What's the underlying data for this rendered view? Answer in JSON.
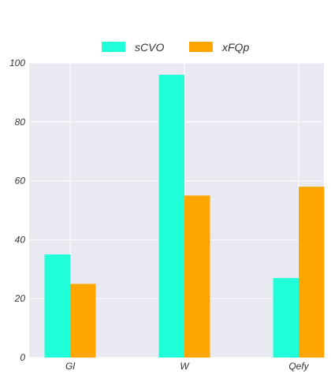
{
  "chart_data": {
    "type": "bar",
    "categories": [
      "Gl",
      "W",
      "Qefy"
    ],
    "series": [
      {
        "name": "sCVO",
        "values": [
          35,
          96,
          27
        ],
        "color": "#20ffd8"
      },
      {
        "name": "xFQp",
        "values": [
          25,
          55,
          58
        ],
        "color": "#ffa500"
      }
    ],
    "ylim": [
      0,
      100
    ],
    "yticks": [
      0,
      20,
      40,
      60,
      80,
      100
    ],
    "grid": true,
    "legend_position": "top-center",
    "background": "#e9e9f1",
    "title": "",
    "xlabel": "",
    "ylabel": ""
  }
}
